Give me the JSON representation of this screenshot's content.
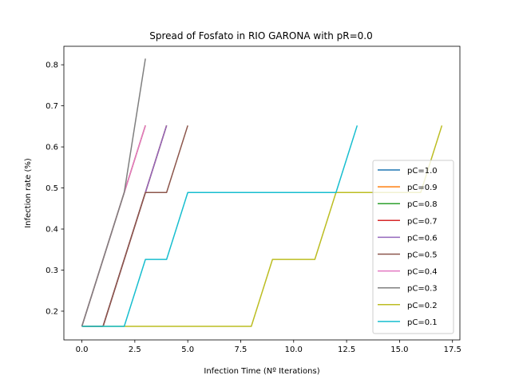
{
  "chart_data": {
    "type": "line",
    "title": "Spread of Fosfato in RIO GARONA with pR=0.0",
    "xlabel": "Infection Time (Nº Iterations)",
    "ylabel": "Infection rate (%)",
    "xlim": [
      -0.85,
      17.85
    ],
    "ylim": [
      0.13,
      0.845
    ],
    "xticks": [
      0.0,
      2.5,
      5.0,
      7.5,
      10.0,
      12.5,
      15.0,
      17.5
    ],
    "xtick_labels": [
      "0.0",
      "2.5",
      "5.0",
      "7.5",
      "10.0",
      "12.5",
      "15.0",
      "17.5"
    ],
    "yticks": [
      0.2,
      0.3,
      0.4,
      0.5,
      0.6,
      0.7,
      0.8
    ],
    "ytick_labels": [
      "0.2",
      "0.3",
      "0.4",
      "0.5",
      "0.6",
      "0.7",
      "0.8"
    ],
    "grid": false,
    "legend_position": "lower-right",
    "series": [
      {
        "name": "pC=1.0",
        "color": "#1f77b4",
        "x": [
          0,
          1,
          2,
          3
        ],
        "y": [
          0.163,
          0.326,
          0.489,
          0.652
        ]
      },
      {
        "name": "pC=0.9",
        "color": "#ff7f0e",
        "x": [
          0,
          1,
          2,
          3
        ],
        "y": [
          0.163,
          0.326,
          0.489,
          0.652
        ]
      },
      {
        "name": "pC=0.8",
        "color": "#2ca02c",
        "x": [
          0,
          1,
          2,
          3,
          4
        ],
        "y": [
          0.163,
          0.163,
          0.326,
          0.489,
          0.652
        ]
      },
      {
        "name": "pC=0.7",
        "color": "#d62728",
        "x": [
          0,
          1,
          2,
          3,
          4
        ],
        "y": [
          0.163,
          0.163,
          0.326,
          0.489,
          0.652
        ]
      },
      {
        "name": "pC=0.6",
        "color": "#9467bd",
        "x": [
          0,
          1,
          2,
          3,
          4
        ],
        "y": [
          0.163,
          0.163,
          0.326,
          0.489,
          0.652
        ]
      },
      {
        "name": "pC=0.5",
        "color": "#8c564b",
        "x": [
          0,
          1,
          2,
          3,
          4,
          5
        ],
        "y": [
          0.163,
          0.163,
          0.326,
          0.489,
          0.489,
          0.652
        ]
      },
      {
        "name": "pC=0.4",
        "color": "#e377c2",
        "x": [
          0,
          1,
          2,
          3
        ],
        "y": [
          0.163,
          0.326,
          0.489,
          0.652
        ]
      },
      {
        "name": "pC=0.3",
        "color": "#7f7f7f",
        "x": [
          0,
          1,
          2,
          3
        ],
        "y": [
          0.163,
          0.326,
          0.489,
          0.815
        ]
      },
      {
        "name": "pC=0.2",
        "color": "#bcbd22",
        "x": [
          0,
          1,
          2,
          3,
          4,
          5,
          6,
          7,
          8,
          9,
          10,
          11,
          12,
          13,
          14,
          15,
          16,
          17
        ],
        "y": [
          0.163,
          0.163,
          0.163,
          0.163,
          0.163,
          0.163,
          0.163,
          0.163,
          0.163,
          0.326,
          0.326,
          0.326,
          0.489,
          0.489,
          0.489,
          0.489,
          0.489,
          0.652
        ]
      },
      {
        "name": "pC=0.1",
        "color": "#17becf",
        "x": [
          0,
          1,
          2,
          3,
          4,
          5,
          6,
          7,
          8,
          9,
          10,
          11,
          12,
          13
        ],
        "y": [
          0.163,
          0.163,
          0.163,
          0.326,
          0.326,
          0.489,
          0.489,
          0.489,
          0.489,
          0.489,
          0.489,
          0.489,
          0.489,
          0.652
        ]
      }
    ]
  }
}
